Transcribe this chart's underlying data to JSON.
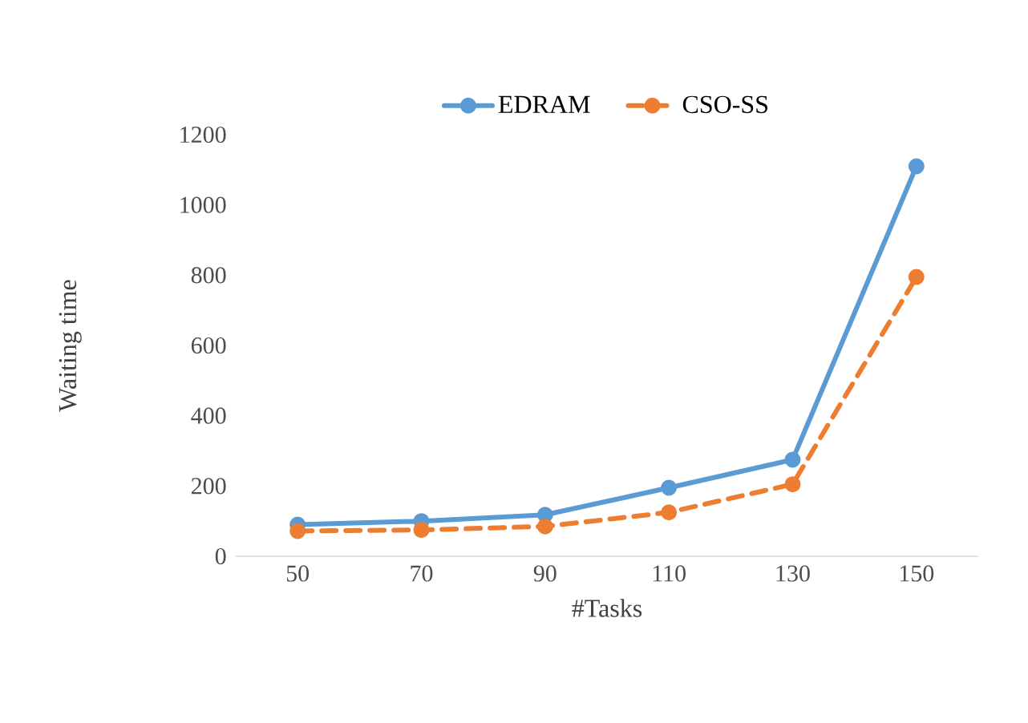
{
  "chart_data": {
    "type": "line",
    "xlabel": "#Tasks",
    "ylabel": "Waiting time",
    "categories": [
      "50",
      "70",
      "90",
      "110",
      "130",
      "150"
    ],
    "series": [
      {
        "name": "EDRAM",
        "color": "#5b9bd5",
        "line_style": "solid",
        "values": [
          90,
          100,
          118,
          195,
          275,
          1110
        ]
      },
      {
        "name": "CSO-SS",
        "color": "#ed7d31",
        "line_style": "dashed",
        "values": [
          72,
          75,
          85,
          125,
          205,
          795
        ]
      }
    ],
    "ylim": [
      0,
      1200
    ],
    "yticks": [
      0,
      200,
      400,
      600,
      800,
      1000,
      1200
    ],
    "marker": "circle",
    "legend": "top",
    "grid": false
  }
}
